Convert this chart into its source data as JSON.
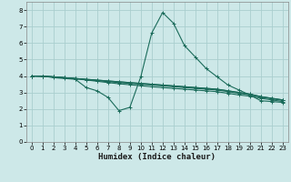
{
  "xlabel": "Humidex (Indice chaleur)",
  "xlim": [
    -0.5,
    23.5
  ],
  "ylim": [
    0,
    8.5
  ],
  "xticks": [
    0,
    1,
    2,
    3,
    4,
    5,
    6,
    7,
    8,
    9,
    10,
    11,
    12,
    13,
    14,
    15,
    16,
    17,
    18,
    19,
    20,
    21,
    22,
    23
  ],
  "yticks": [
    0,
    1,
    2,
    3,
    4,
    5,
    6,
    7,
    8
  ],
  "background_color": "#cde8e8",
  "grid_color": "#aacece",
  "line_color": "#1a6b5a",
  "series": [
    {
      "x": [
        0,
        1,
        2,
        3,
        4,
        5,
        6,
        7,
        8,
        9,
        10,
        11,
        12,
        13,
        14,
        15,
        16,
        17,
        18,
        19,
        20,
        21,
        22,
        23
      ],
      "y": [
        4.0,
        4.0,
        3.9,
        3.85,
        3.8,
        3.3,
        3.1,
        2.7,
        1.9,
        2.1,
        3.95,
        6.6,
        7.85,
        7.2,
        5.85,
        5.15,
        4.45,
        3.95,
        3.45,
        3.15,
        2.85,
        2.5,
        2.45,
        2.4
      ]
    },
    {
      "x": [
        0,
        1,
        2,
        3,
        4,
        5,
        6,
        7,
        8,
        9,
        10,
        11,
        12,
        13,
        14,
        15,
        16,
        17,
        18,
        19,
        20,
        21,
        22,
        23
      ],
      "y": [
        4.0,
        4.0,
        3.95,
        3.9,
        3.85,
        3.8,
        3.75,
        3.7,
        3.65,
        3.6,
        3.55,
        3.5,
        3.45,
        3.4,
        3.35,
        3.3,
        3.25,
        3.2,
        3.1,
        3.0,
        2.9,
        2.75,
        2.65,
        2.55
      ]
    },
    {
      "x": [
        0,
        1,
        2,
        3,
        4,
        5,
        6,
        7,
        8,
        9,
        10,
        11,
        12,
        13,
        14,
        15,
        16,
        17,
        18,
        19,
        20,
        21,
        22,
        23
      ],
      "y": [
        4.0,
        3.98,
        3.95,
        3.9,
        3.85,
        3.8,
        3.75,
        3.7,
        3.65,
        3.6,
        3.55,
        3.5,
        3.45,
        3.4,
        3.35,
        3.3,
        3.25,
        3.2,
        3.1,
        3.0,
        2.9,
        2.75,
        2.65,
        2.55
      ]
    },
    {
      "x": [
        0,
        1,
        2,
        3,
        4,
        5,
        6,
        7,
        8,
        9,
        10,
        11,
        12,
        13,
        14,
        15,
        16,
        17,
        18,
        19,
        20,
        21,
        22,
        23
      ],
      "y": [
        4.0,
        3.98,
        3.95,
        3.9,
        3.85,
        3.78,
        3.72,
        3.66,
        3.6,
        3.55,
        3.5,
        3.45,
        3.4,
        3.35,
        3.3,
        3.25,
        3.2,
        3.15,
        3.05,
        2.95,
        2.85,
        2.72,
        2.62,
        2.52
      ]
    },
    {
      "x": [
        0,
        1,
        2,
        3,
        4,
        5,
        6,
        7,
        8,
        9,
        10,
        11,
        12,
        13,
        14,
        15,
        16,
        17,
        18,
        19,
        20,
        21,
        22,
        23
      ],
      "y": [
        4.0,
        3.98,
        3.95,
        3.9,
        3.83,
        3.76,
        3.68,
        3.6,
        3.53,
        3.47,
        3.41,
        3.35,
        3.3,
        3.25,
        3.2,
        3.15,
        3.1,
        3.05,
        2.95,
        2.85,
        2.78,
        2.65,
        2.55,
        2.45
      ]
    }
  ]
}
